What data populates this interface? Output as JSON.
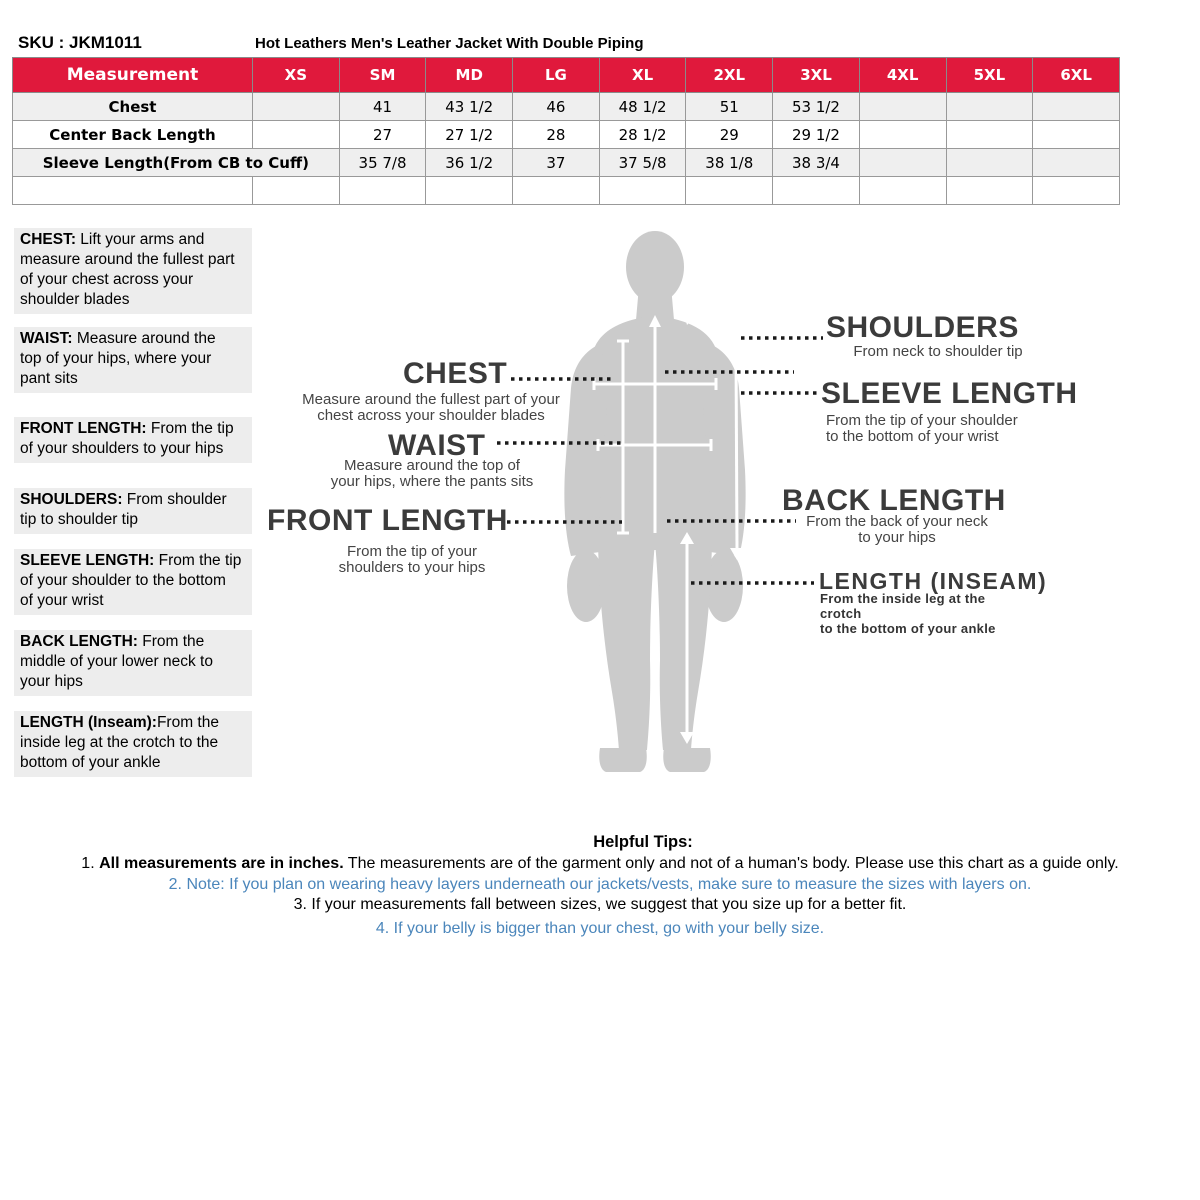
{
  "page": {
    "sku": "SKU : JKM1011",
    "title": "Hot Leathers Men's Leather Jacket With Double Piping"
  },
  "size_table": {
    "columns": [
      "Measurement",
      "XS",
      "SM",
      "MD",
      "LG",
      "XL",
      "2XL",
      "3XL",
      "4XL",
      "5XL",
      "6XL"
    ],
    "rows": [
      {
        "label": "Chest",
        "label_colspan": 1,
        "values": [
          "",
          "41",
          "43 1/2",
          "46",
          "48 1/2",
          "51",
          "53 1/2",
          "",
          "",
          ""
        ]
      },
      {
        "label": "Center Back Length",
        "label_colspan": 1,
        "values": [
          "",
          "27",
          "27 1/2",
          "28",
          "28 1/2",
          "29",
          "29 1/2",
          "",
          "",
          ""
        ]
      },
      {
        "label": "Sleeve Length(From CB to Cuff)",
        "label_colspan": 2,
        "values": [
          "35 7/8",
          "36 1/2",
          "37",
          "37 5/8",
          "38 1/8",
          "38 3/4",
          "",
          "",
          ""
        ]
      },
      {
        "label": "",
        "label_colspan": 1,
        "values": [
          "",
          "",
          "",
          "",
          "",
          "",
          "",
          "",
          "",
          ""
        ]
      }
    ]
  },
  "definitions": [
    {
      "term": "CHEST:",
      "desc": " Lift your arms  and\nmeasure around the fullest part\nof your chest across your\nshoulder blades"
    },
    {
      "term": "WAIST:",
      "desc": "  Measure around the\ntop of your hips, where your\npant sits"
    },
    {
      "term": "FRONT LENGTH:",
      "desc": " From the tip\nof your shoulders to your hips"
    },
    {
      "term": "SHOULDERS:",
      "desc": " From shoulder\ntip to shoulder tip"
    },
    {
      "term": "SLEEVE LENGTH:",
      "desc": " From the tip\nof your shoulder to the bottom\nof your wrist"
    },
    {
      "term": "BACK LENGTH:",
      "desc": " From the\nmiddle of your lower neck to\nyour hips"
    },
    {
      "term": "LENGTH (Inseam):",
      "desc": "From the\ninside leg at the crotch to the\nbottom of your ankle"
    }
  ],
  "diagram": {
    "chest": {
      "title": "CHEST",
      "desc": "Measure around the fullest part of your\nchest across your shoulder blades"
    },
    "waist": {
      "title": "WAIST",
      "desc": "Measure around the top of\nyour hips, where the pants sits"
    },
    "front_length": {
      "title": "FRONT LENGTH",
      "desc": "From the tip of your\nshoulders to your hips"
    },
    "shoulders": {
      "title": "SHOULDERS",
      "desc": "From neck to shoulder tip"
    },
    "sleeve_length": {
      "title": "SLEEVE LENGTH",
      "desc": "From the tip of your shoulder\nto the bottom of your wrist"
    },
    "back_length": {
      "title": "BACK LENGTH",
      "desc": "From the back of your neck\nto your hips"
    },
    "inseam": {
      "title": "LENGTH (INSEAM)",
      "desc": "From the inside leg at the crotch\nto the bottom of your ankle"
    }
  },
  "tips": {
    "heading": "Helpful Tips:",
    "items": [
      {
        "pre": "1. ",
        "bold": "All measurements are in inches.",
        "post": " The measurements are of the garment only and not of a human's body. Please use this chart as a guide only."
      },
      {
        "pre": "2. Note: If you plan on wearing heavy layers underneath our jackets/vests, make sure to measure the sizes with layers on.",
        "bold": "",
        "post": ""
      },
      {
        "pre": "3. If your measurements fall between sizes, we suggest that you size up for a better fit.",
        "bold": "",
        "post": ""
      },
      {
        "pre": "4. If your belly is bigger than your chest, go with your belly size.",
        "bold": "",
        "post": ""
      }
    ]
  },
  "colors": {
    "header_red": "#e0193c",
    "tip_blue": "#4b86bb",
    "silhouette_gray": "#cbcbcb",
    "definition_box_gray": "#ededed",
    "table_row_gray": "#efefef",
    "table_border_gray": "#999999",
    "diagram_label_dark": "#3b3b3b"
  }
}
